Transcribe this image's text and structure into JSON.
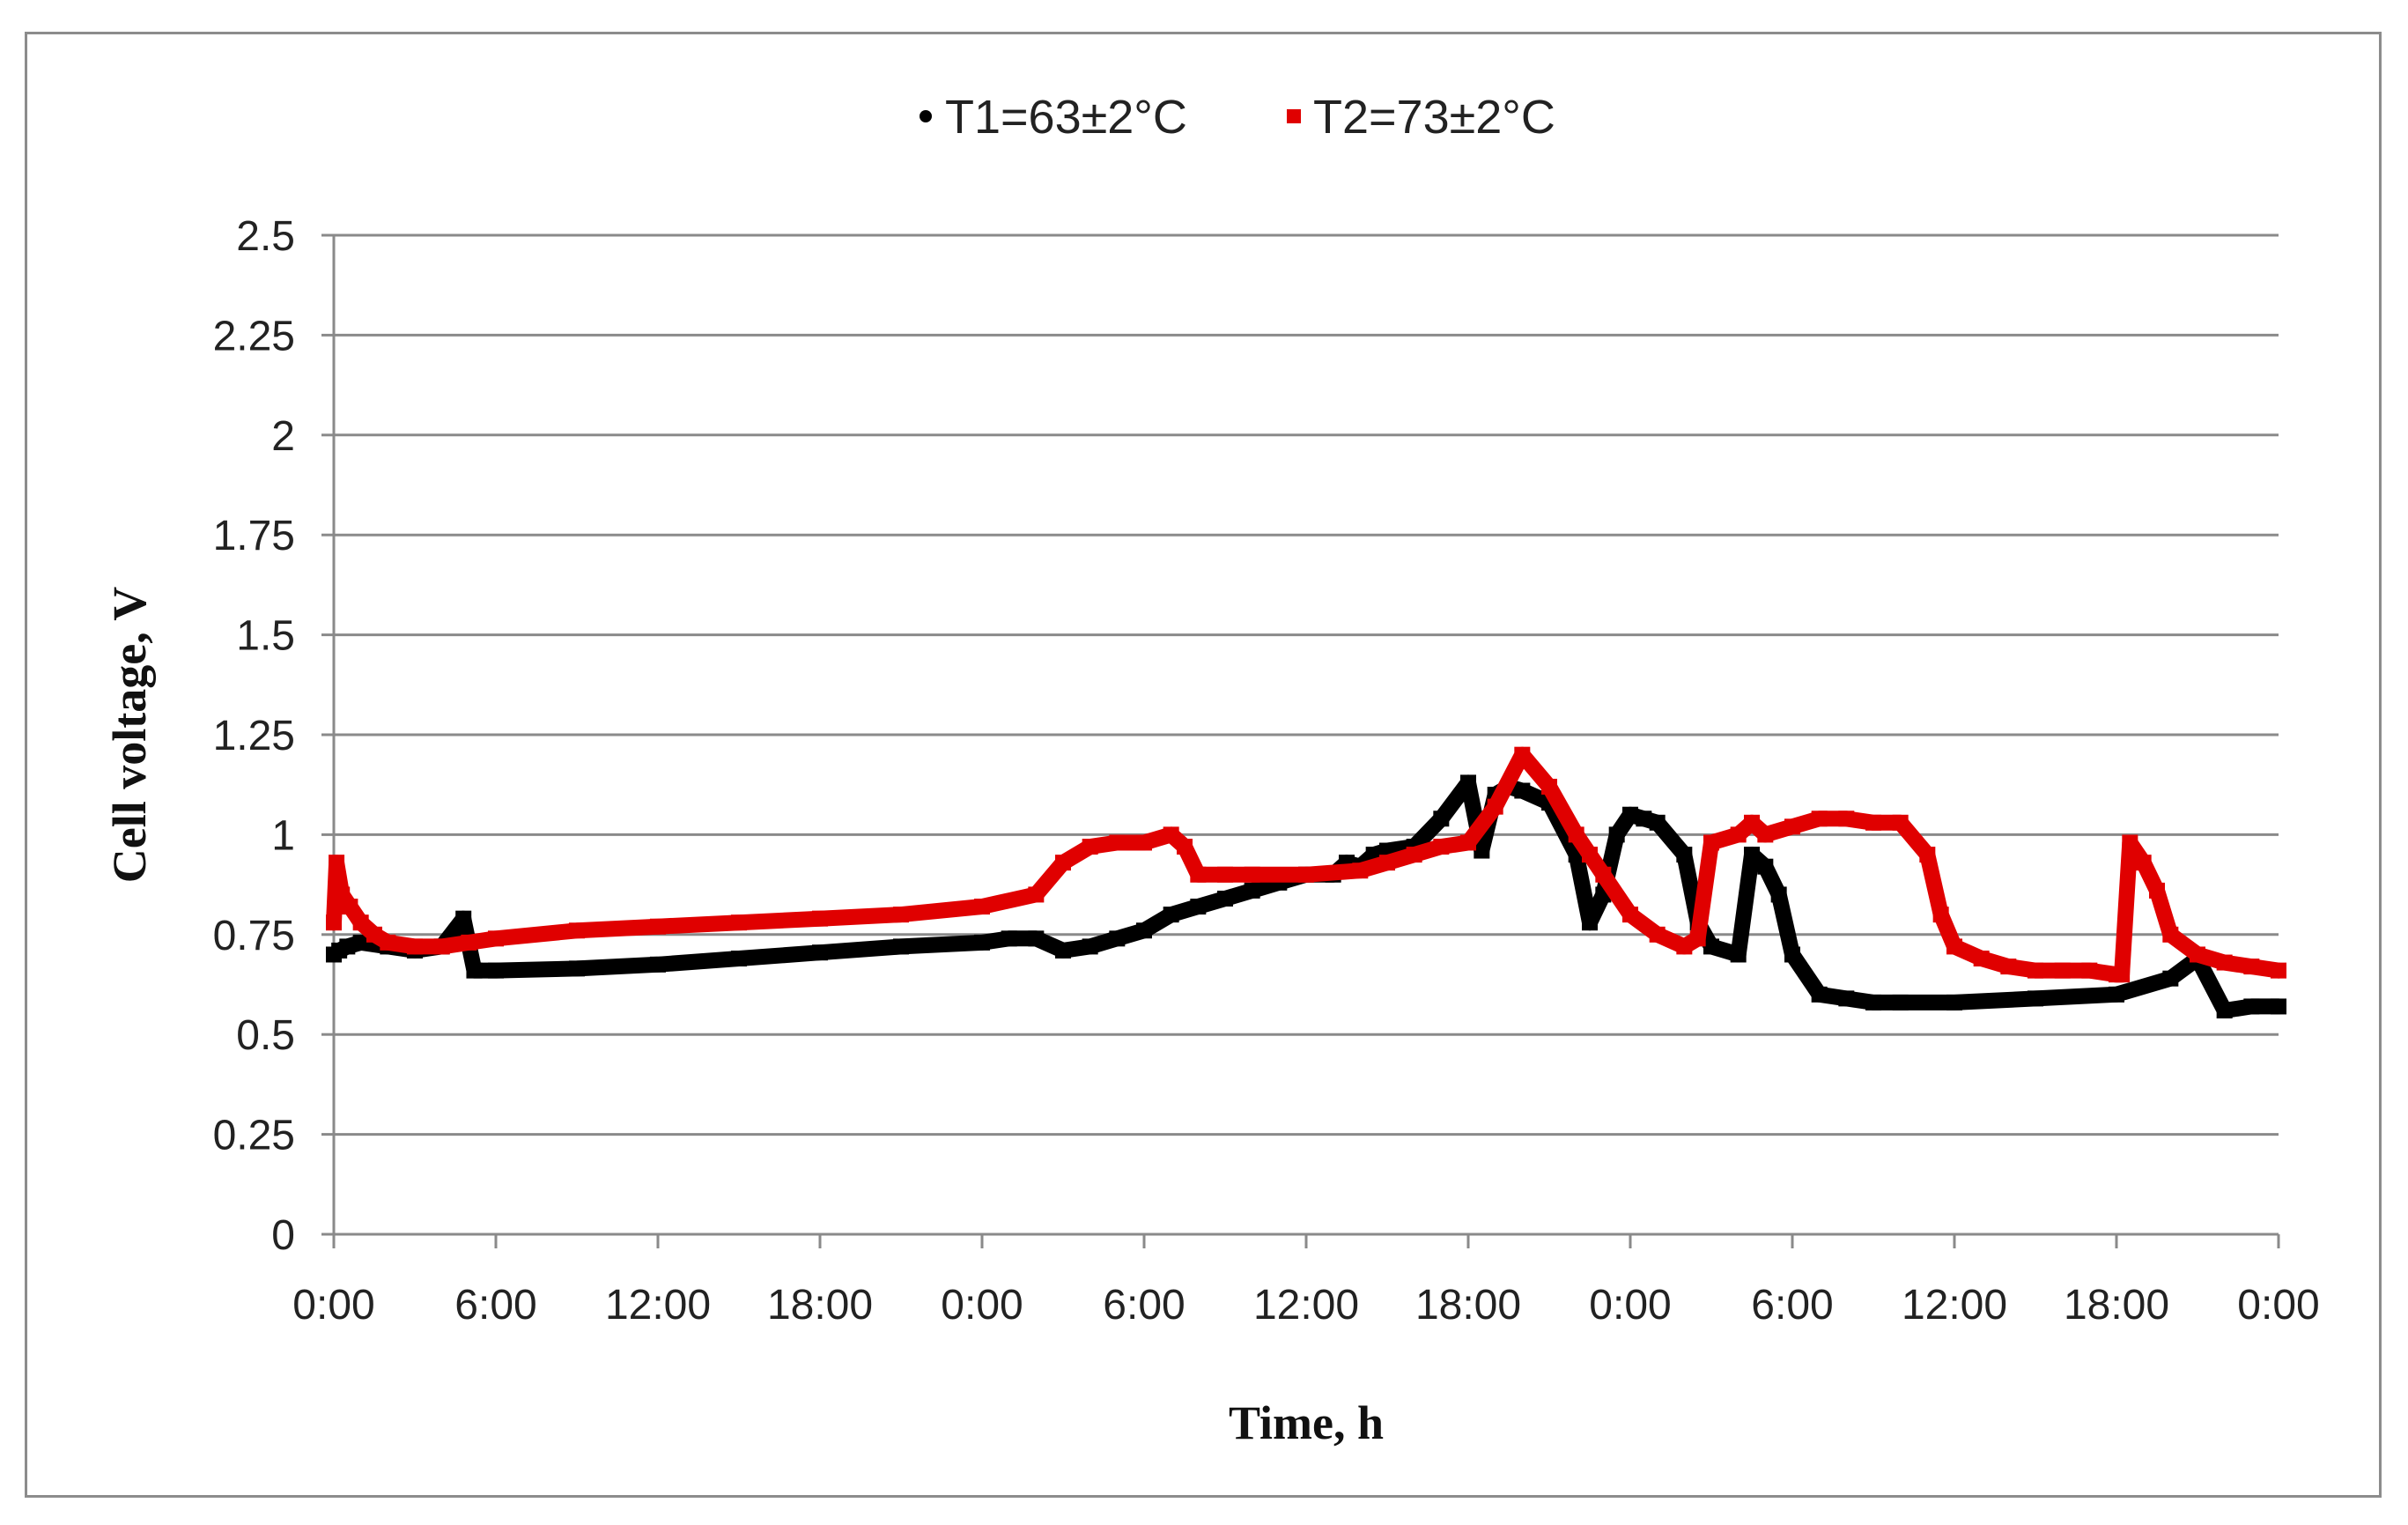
{
  "chart_data": {
    "type": "scatter",
    "title": "",
    "xlabel": "Time, h",
    "ylabel": "Cell voltage, V",
    "x_unit": "hours (elapsed)",
    "xlim": [
      0,
      72
    ],
    "ylim": [
      0,
      2.5
    ],
    "y_ticks": [
      "0",
      "0.25",
      "0.5",
      "0.75",
      "1",
      "1.25",
      "1.5",
      "1.75",
      "2",
      "2.25",
      "2.5"
    ],
    "x_tick_values": [
      0,
      6,
      12,
      18,
      24,
      30,
      36,
      42,
      48,
      54,
      60,
      66,
      72
    ],
    "x_tick_labels": [
      "0:00",
      "6:00",
      "12:00",
      "18:00",
      "0:00",
      "6:00",
      "12:00",
      "18:00",
      "0:00",
      "6:00",
      "12:00",
      "18:00",
      "0:00"
    ],
    "grid": "horizontal",
    "legend_position": "top-center",
    "series": [
      {
        "name": "T1=63±2°C",
        "color": "#000000",
        "x": [
          0,
          0.2,
          0.5,
          1,
          2,
          3,
          4,
          4.8,
          5.2,
          6,
          9,
          12,
          15,
          18,
          21,
          24,
          25,
          26,
          27,
          28,
          29,
          30,
          31,
          32,
          33,
          34,
          35,
          36,
          37,
          37.5,
          38,
          38.5,
          39,
          40,
          41,
          42,
          42.5,
          43,
          43.5,
          44,
          45,
          46,
          46.5,
          47,
          47.5,
          48,
          48.5,
          49,
          50,
          50.5,
          51,
          52,
          52.5,
          53,
          53.5,
          54,
          55,
          56,
          57,
          58,
          60,
          63,
          66,
          68,
          69,
          70,
          71,
          72
        ],
        "y": [
          0.7,
          0.71,
          0.72,
          0.73,
          0.72,
          0.71,
          0.72,
          0.79,
          0.66,
          0.66,
          0.665,
          0.675,
          0.69,
          0.705,
          0.72,
          0.73,
          0.74,
          0.74,
          0.71,
          0.72,
          0.74,
          0.76,
          0.8,
          0.82,
          0.84,
          0.86,
          0.88,
          0.9,
          0.9,
          0.93,
          0.92,
          0.95,
          0.96,
          0.97,
          1.04,
          1.13,
          0.96,
          1.1,
          1.12,
          1.11,
          1.08,
          0.95,
          0.78,
          0.85,
          1.0,
          1.05,
          1.04,
          1.03,
          0.95,
          0.78,
          0.72,
          0.7,
          0.95,
          0.92,
          0.85,
          0.7,
          0.6,
          0.59,
          0.58,
          0.58,
          0.58,
          0.59,
          0.6,
          0.64,
          0.69,
          0.56,
          0.57,
          0.57
        ]
      },
      {
        "name": "T2=73±2°C",
        "color": "#e00000",
        "x": [
          0,
          0.1,
          0.3,
          0.6,
          1,
          1.5,
          2,
          3,
          4,
          5,
          6,
          9,
          12,
          15,
          18,
          21,
          24,
          26,
          27,
          28,
          29,
          30,
          31,
          31.5,
          32,
          33,
          34,
          36,
          38,
          39,
          40,
          41,
          42,
          43,
          44,
          45,
          46,
          46.5,
          47,
          48,
          49,
          50,
          50.5,
          51,
          52,
          52.5,
          53,
          54,
          55,
          56,
          57,
          58,
          59,
          59.5,
          60,
          61,
          62,
          63,
          64,
          65,
          66,
          66.2,
          66.5,
          67,
          67.5,
          68,
          69,
          70,
          71,
          72
        ],
        "y": [
          0.78,
          0.93,
          0.85,
          0.82,
          0.78,
          0.75,
          0.73,
          0.72,
          0.72,
          0.73,
          0.74,
          0.76,
          0.77,
          0.78,
          0.79,
          0.8,
          0.82,
          0.85,
          0.93,
          0.97,
          0.98,
          0.98,
          1.0,
          0.97,
          0.9,
          0.9,
          0.9,
          0.9,
          0.91,
          0.93,
          0.95,
          0.97,
          0.98,
          1.07,
          1.2,
          1.12,
          1.0,
          0.95,
          0.9,
          0.8,
          0.75,
          0.72,
          0.74,
          0.98,
          1.0,
          1.03,
          1.0,
          1.02,
          1.04,
          1.04,
          1.03,
          1.03,
          0.95,
          0.8,
          0.72,
          0.69,
          0.67,
          0.66,
          0.66,
          0.66,
          0.65,
          0.65,
          0.98,
          0.93,
          0.86,
          0.75,
          0.7,
          0.68,
          0.67,
          0.66
        ]
      }
    ]
  }
}
